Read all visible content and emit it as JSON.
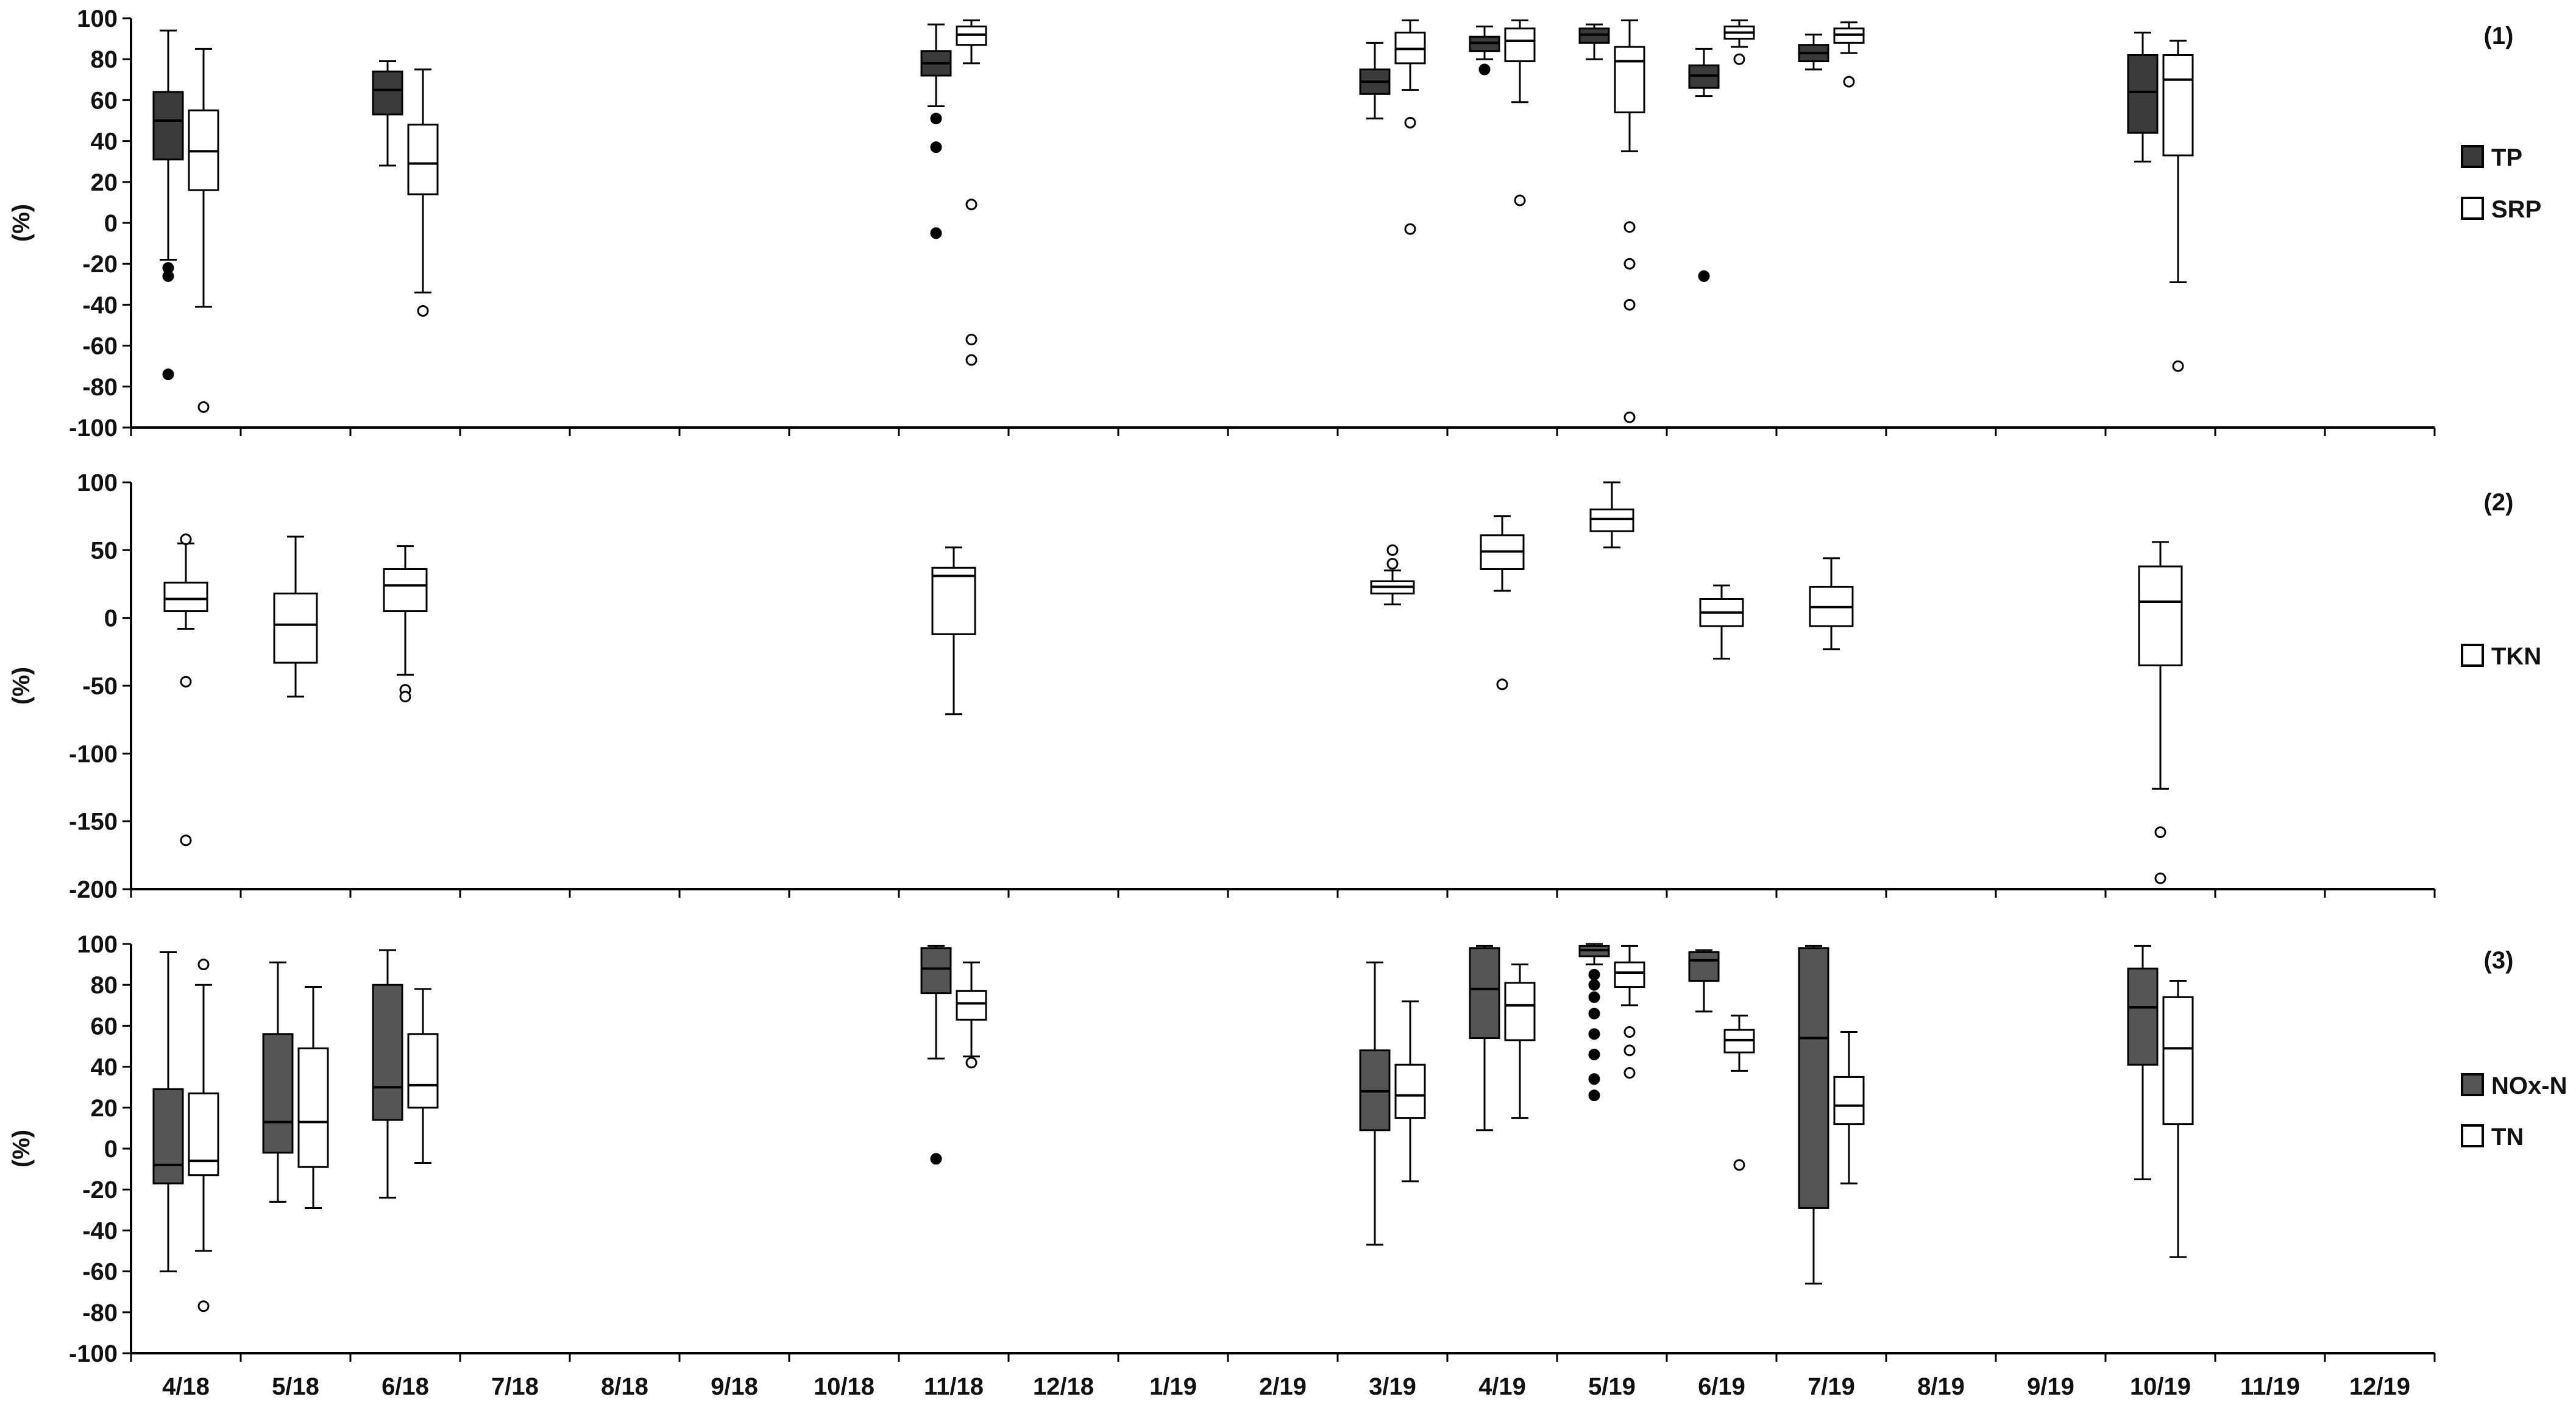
{
  "chart_data": {
    "type": "box",
    "x_categories": [
      "4/18",
      "5/18",
      "6/18",
      "7/18",
      "8/18",
      "9/18",
      "10/18",
      "11/18",
      "12/18",
      "1/19",
      "2/19",
      "3/19",
      "4/19",
      "5/19",
      "6/19",
      "7/19",
      "8/19",
      "9/19",
      "10/19",
      "11/19",
      "12/19"
    ],
    "panels": [
      {
        "id": "1",
        "label": "(1)",
        "ylabel": "(%)",
        "ylim": [
          -100,
          100
        ],
        "yticks": [
          100,
          80,
          60,
          40,
          20,
          0,
          -20,
          -40,
          -60,
          -80,
          -100
        ],
        "series": [
          {
            "name": "TP",
            "color": "#3a3a3a",
            "boxes": [
              {
                "x": "4/18",
                "whisker_low": -18,
                "q1": 31,
                "median": 50,
                "q3": 64,
                "whisker_high": 94,
                "outliers": [
                  -22,
                  -26,
                  -74
                ]
              },
              {
                "x": "6/18",
                "whisker_low": 28,
                "q1": 53,
                "median": 65,
                "q3": 74,
                "whisker_high": 79,
                "outliers": []
              },
              {
                "x": "11/18",
                "whisker_low": 57,
                "q1": 72,
                "median": 78,
                "q3": 84,
                "whisker_high": 97,
                "outliers": [
                  51,
                  37,
                  -5
                ]
              },
              {
                "x": "3/19",
                "whisker_low": 51,
                "q1": 63,
                "median": 69,
                "q3": 75,
                "whisker_high": 88,
                "outliers": []
              },
              {
                "x": "4/19",
                "whisker_low": 80,
                "q1": 84,
                "median": 88,
                "q3": 91,
                "whisker_high": 96,
                "outliers": [
                  75
                ]
              },
              {
                "x": "5/19",
                "whisker_low": 80,
                "q1": 88,
                "median": 92,
                "q3": 95,
                "whisker_high": 97,
                "outliers": []
              },
              {
                "x": "6/19",
                "whisker_low": 62,
                "q1": 66,
                "median": 72,
                "q3": 77,
                "whisker_high": 85,
                "outliers": [
                  -26
                ]
              },
              {
                "x": "7/19",
                "whisker_low": 75,
                "q1": 79,
                "median": 83,
                "q3": 87,
                "whisker_high": 92,
                "outliers": []
              },
              {
                "x": "10/19",
                "whisker_low": 30,
                "q1": 44,
                "median": 64,
                "q3": 82,
                "whisker_high": 93,
                "outliers": []
              }
            ]
          },
          {
            "name": "SRP",
            "color": "#ffffff",
            "boxes": [
              {
                "x": "4/18",
                "whisker_low": -41,
                "q1": 16,
                "median": 35,
                "q3": 55,
                "whisker_high": 85,
                "outliers": [
                  -90
                ]
              },
              {
                "x": "6/18",
                "whisker_low": -34,
                "q1": 14,
                "median": 29,
                "q3": 48,
                "whisker_high": 75,
                "outliers": [
                  -43
                ]
              },
              {
                "x": "11/18",
                "whisker_low": 78,
                "q1": 87,
                "median": 92,
                "q3": 96,
                "whisker_high": 99,
                "outliers": [
                  9,
                  -57,
                  -67
                ]
              },
              {
                "x": "3/19",
                "whisker_low": 65,
                "q1": 78,
                "median": 85,
                "q3": 93,
                "whisker_high": 99,
                "outliers": [
                  49,
                  -3
                ]
              },
              {
                "x": "4/19",
                "whisker_low": 59,
                "q1": 79,
                "median": 89,
                "q3": 95,
                "whisker_high": 99,
                "outliers": [
                  11
                ]
              },
              {
                "x": "5/19",
                "whisker_low": 35,
                "q1": 54,
                "median": 79,
                "q3": 86,
                "whisker_high": 99,
                "outliers": [
                  -2,
                  -20,
                  -40,
                  -95
                ]
              },
              {
                "x": "6/19",
                "whisker_low": 86,
                "q1": 90,
                "median": 93,
                "q3": 96,
                "whisker_high": 99,
                "outliers": [
                  80
                ]
              },
              {
                "x": "7/19",
                "whisker_low": 83,
                "q1": 88,
                "median": 92,
                "q3": 95,
                "whisker_high": 98,
                "outliers": [
                  69
                ]
              },
              {
                "x": "10/19",
                "whisker_low": -29,
                "q1": 33,
                "median": 70,
                "q3": 82,
                "whisker_high": 89,
                "outliers": [
                  -70
                ]
              }
            ]
          }
        ],
        "legend": [
          {
            "name": "TP",
            "color": "#3a3a3a"
          },
          {
            "name": "SRP",
            "color": "#ffffff"
          }
        ]
      },
      {
        "id": "2",
        "label": "(2)",
        "ylabel": "(%)",
        "ylim": [
          -200,
          100
        ],
        "yticks": [
          100,
          50,
          0,
          -50,
          -100,
          -150,
          -200
        ],
        "series": [
          {
            "name": "TKN",
            "color": "#ffffff",
            "boxes": [
              {
                "x": "4/18",
                "whisker_low": -8,
                "q1": 5,
                "median": 14,
                "q3": 26,
                "whisker_high": 55,
                "outliers": [
                  58,
                  -47,
                  -164
                ]
              },
              {
                "x": "5/18",
                "whisker_low": -58,
                "q1": -33,
                "median": -5,
                "q3": 18,
                "whisker_high": 60,
                "outliers": []
              },
              {
                "x": "6/18",
                "whisker_low": -42,
                "q1": 5,
                "median": 24,
                "q3": 36,
                "whisker_high": 53,
                "outliers": [
                  -53,
                  -58
                ]
              },
              {
                "x": "11/18",
                "whisker_low": -71,
                "q1": -12,
                "median": 31,
                "q3": 37,
                "whisker_high": 52,
                "outliers": []
              },
              {
                "x": "3/19",
                "whisker_low": 10,
                "q1": 18,
                "median": 23,
                "q3": 27,
                "whisker_high": 35,
                "outliers": [
                  50,
                  40
                ]
              },
              {
                "x": "4/19",
                "whisker_low": 20,
                "q1": 36,
                "median": 49,
                "q3": 61,
                "whisker_high": 75,
                "outliers": [
                  -49
                ]
              },
              {
                "x": "5/19",
                "whisker_low": 52,
                "q1": 64,
                "median": 73,
                "q3": 80,
                "whisker_high": 100,
                "outliers": []
              },
              {
                "x": "6/19",
                "whisker_low": -30,
                "q1": -6,
                "median": 4,
                "q3": 14,
                "whisker_high": 24,
                "outliers": []
              },
              {
                "x": "7/19",
                "whisker_low": -23,
                "q1": -6,
                "median": 8,
                "q3": 23,
                "whisker_high": 44,
                "outliers": []
              },
              {
                "x": "10/19",
                "whisker_low": -126,
                "q1": -35,
                "median": 12,
                "q3": 38,
                "whisker_high": 56,
                "outliers": [
                  -158,
                  -192
                ]
              }
            ]
          }
        ],
        "legend": [
          {
            "name": "TKN",
            "color": "#ffffff"
          }
        ]
      },
      {
        "id": "3",
        "label": "(3)",
        "ylabel": "(%)",
        "ylim": [
          -100,
          100
        ],
        "yticks": [
          100,
          80,
          60,
          40,
          20,
          0,
          -20,
          -40,
          -60,
          -80,
          -100
        ],
        "series": [
          {
            "name": "NOx-N",
            "color": "#555555",
            "boxes": [
              {
                "x": "4/18",
                "whisker_low": -60,
                "q1": -17,
                "median": -8,
                "q3": 29,
                "whisker_high": 96,
                "outliers": []
              },
              {
                "x": "5/18",
                "whisker_low": -26,
                "q1": -2,
                "median": 13,
                "q3": 56,
                "whisker_high": 91,
                "outliers": []
              },
              {
                "x": "6/18",
                "whisker_low": -24,
                "q1": 14,
                "median": 30,
                "q3": 80,
                "whisker_high": 97,
                "outliers": []
              },
              {
                "x": "11/18",
                "whisker_low": 44,
                "q1": 76,
                "median": 88,
                "q3": 98,
                "whisker_high": 99,
                "outliers": [
                  -5
                ]
              },
              {
                "x": "3/19",
                "whisker_low": -47,
                "q1": 9,
                "median": 28,
                "q3": 48,
                "whisker_high": 91,
                "outliers": []
              },
              {
                "x": "4/19",
                "whisker_low": 9,
                "q1": 54,
                "median": 78,
                "q3": 98,
                "whisker_high": 99,
                "outliers": []
              },
              {
                "x": "5/19",
                "whisker_low": 90,
                "q1": 94,
                "median": 97,
                "q3": 99,
                "whisker_high": 100,
                "outliers": [
                  85,
                  80,
                  74,
                  66,
                  56,
                  46,
                  34,
                  26
                ]
              },
              {
                "x": "6/19",
                "whisker_low": 67,
                "q1": 82,
                "median": 92,
                "q3": 96,
                "whisker_high": 97,
                "outliers": []
              },
              {
                "x": "7/19",
                "whisker_low": -66,
                "q1": -29,
                "median": 54,
                "q3": 98,
                "whisker_high": 99,
                "outliers": []
              },
              {
                "x": "10/19",
                "whisker_low": -15,
                "q1": 41,
                "median": 69,
                "q3": 88,
                "whisker_high": 99,
                "outliers": []
              }
            ]
          },
          {
            "name": "TN",
            "color": "#ffffff",
            "boxes": [
              {
                "x": "4/18",
                "whisker_low": -50,
                "q1": -13,
                "median": -6,
                "q3": 27,
                "whisker_high": 80,
                "outliers": [
                  90,
                  -77
                ]
              },
              {
                "x": "5/18",
                "whisker_low": -29,
                "q1": -9,
                "median": 13,
                "q3": 49,
                "whisker_high": 79,
                "outliers": []
              },
              {
                "x": "6/18",
                "whisker_low": -7,
                "q1": 20,
                "median": 31,
                "q3": 56,
                "whisker_high": 78,
                "outliers": []
              },
              {
                "x": "11/18",
                "whisker_low": 45,
                "q1": 63,
                "median": 71,
                "q3": 77,
                "whisker_high": 91,
                "outliers": [
                  42
                ]
              },
              {
                "x": "3/19",
                "whisker_low": -16,
                "q1": 15,
                "median": 26,
                "q3": 41,
                "whisker_high": 72,
                "outliers": []
              },
              {
                "x": "4/19",
                "whisker_low": 15,
                "q1": 53,
                "median": 70,
                "q3": 81,
                "whisker_high": 90,
                "outliers": []
              },
              {
                "x": "5/19",
                "whisker_low": 70,
                "q1": 79,
                "median": 86,
                "q3": 91,
                "whisker_high": 99,
                "outliers": [
                  57,
                  48,
                  37
                ]
              },
              {
                "x": "6/19",
                "whisker_low": 38,
                "q1": 47,
                "median": 53,
                "q3": 58,
                "whisker_high": 65,
                "outliers": [
                  -8
                ]
              },
              {
                "x": "7/19",
                "whisker_low": -17,
                "q1": 12,
                "median": 21,
                "q3": 35,
                "whisker_high": 57,
                "outliers": []
              },
              {
                "x": "10/19",
                "whisker_low": -53,
                "q1": 12,
                "median": 49,
                "q3": 74,
                "whisker_high": 82,
                "outliers": []
              }
            ]
          }
        ],
        "legend": [
          {
            "name": "NOx-N",
            "color": "#555555"
          },
          {
            "name": "TN",
            "color": "#ffffff"
          }
        ]
      }
    ]
  }
}
